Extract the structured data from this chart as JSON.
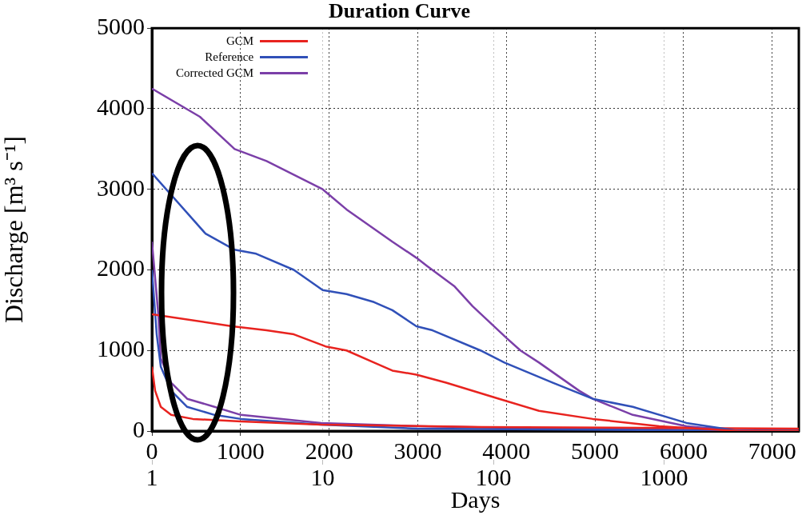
{
  "chart_data": {
    "type": "line",
    "title": "Duration Curve",
    "xlabel": "Days",
    "ylabel": "Discharge [m³ s⁻¹]",
    "xlim": [
      0,
      7300
    ],
    "xticks": [
      0,
      1000,
      2000,
      3000,
      4000,
      5000,
      6000,
      7000
    ],
    "x2lim": [
      1,
      6150
    ],
    "x2ticks": [
      1,
      10,
      100,
      1000
    ],
    "log": "x2",
    "ylim": [
      0,
      5000
    ],
    "yticks": [
      0,
      1000,
      2000,
      3000,
      4000,
      5000
    ],
    "grid": true,
    "legend": "top left",
    "marker": "none",
    "line_style": "solid",
    "series": [
      {
        "name": "GCM",
        "color": "#e8231f",
        "axis": "x2",
        "x": [
          1,
          2.95,
          4.69,
          6.78,
          10.4,
          13.8,
          20,
          25.6,
          35.4,
          52.8,
          108,
          185,
          382,
          937,
          2762,
          6150
        ],
        "values": [
          1450,
          1300,
          1250,
          1200,
          1050,
          1000,
          850,
          750,
          700,
          600,
          400,
          250,
          150,
          60,
          0,
          0
        ]
      },
      {
        "name": "Reference",
        "color": "#3050b8",
        "axis": "x2",
        "x": [
          1,
          2.06,
          3.05,
          4.08,
          6.78,
          10,
          13.8,
          20,
          25.6,
          35.4,
          44,
          84,
          116,
          223,
          382,
          656,
          1352,
          2762,
          6150
        ],
        "values": [
          3200,
          2450,
          2250,
          2200,
          2000,
          1750,
          1700,
          1600,
          1500,
          1300,
          1250,
          1000,
          850,
          600,
          400,
          300,
          100,
          0,
          0
        ]
      },
      {
        "name": "Corrected GCM",
        "color": "#7b3fa8",
        "axis": "x2",
        "x": [
          1,
          1.91,
          3.05,
          4.69,
          10,
          13.8,
          25.6,
          35.4,
          40.8,
          58.9,
          75.5,
          120,
          144,
          185,
          318,
          382,
          656,
          1352,
          2762,
          6150
        ],
        "values": [
          4250,
          3900,
          3500,
          3350,
          3000,
          2750,
          2350,
          2150,
          2050,
          1800,
          1550,
          1150,
          1000,
          850,
          500,
          400,
          200,
          60,
          0,
          0
        ]
      },
      {
        "color": "#e8231f",
        "x": [
          0,
          36,
          100,
          217,
          462,
          1005,
          1910,
          3719,
          5529,
          7300
        ],
        "values": [
          800,
          500,
          300,
          200,
          150,
          120,
          80,
          50,
          40,
          30
        ]
      },
      {
        "color": "#3050b8",
        "x": [
          0,
          54,
          100,
          217,
          398,
          706,
          1005,
          1910,
          2995,
          7300
        ],
        "values": [
          2000,
          1200,
          800,
          500,
          300,
          200,
          150,
          80,
          30,
          0
        ]
      },
      {
        "color": "#7b3fa8",
        "x": [
          0,
          72,
          100,
          217,
          398,
          706,
          1005,
          1910,
          2995,
          4624,
          7300
        ],
        "values": [
          2350,
          1450,
          900,
          600,
          400,
          300,
          200,
          100,
          60,
          30,
          0
        ]
      }
    ]
  }
}
